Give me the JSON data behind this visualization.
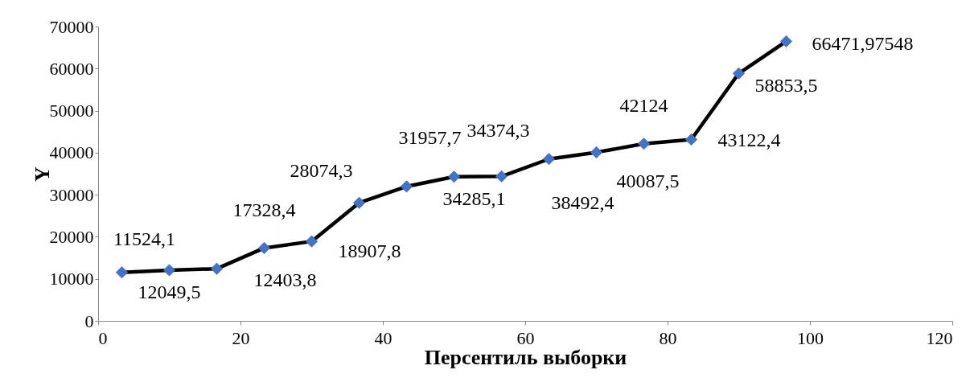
{
  "chart_data": {
    "type": "line",
    "xlabel": "Персентиль выборки",
    "ylabel": "Y",
    "x": [
      3.33,
      10,
      16.67,
      23.33,
      30,
      36.67,
      43.33,
      50,
      56.67,
      63.33,
      70,
      76.67,
      83.33,
      90,
      96.67
    ],
    "series": [
      {
        "color": "#000000",
        "values": [
          11524.1,
          12049.5,
          12403.8,
          17328.4,
          18907.8,
          28074.3,
          31957.7,
          34285.1,
          34374.3,
          38492.4,
          40087.5,
          42124,
          43122.4,
          58853.5,
          66471.97548
        ],
        "value_labels": [
          "11524,1",
          "12049,5",
          "12403,8",
          "17328,4",
          "18907,8",
          "28074,3",
          "31957,7",
          "34285,1",
          "34374,3",
          "38492,4",
          "40087,5",
          "42124",
          "43122,4",
          "58853,5",
          "66471,97548"
        ]
      }
    ],
    "marker": "diamond",
    "xlim": [
      0,
      120
    ],
    "xticks": [
      0,
      20,
      40,
      60,
      80,
      100,
      120
    ],
    "ylim": [
      0,
      70000
    ],
    "yticks": [
      0,
      10000,
      20000,
      30000,
      40000,
      50000,
      60000,
      70000
    ],
    "grid": false
  }
}
